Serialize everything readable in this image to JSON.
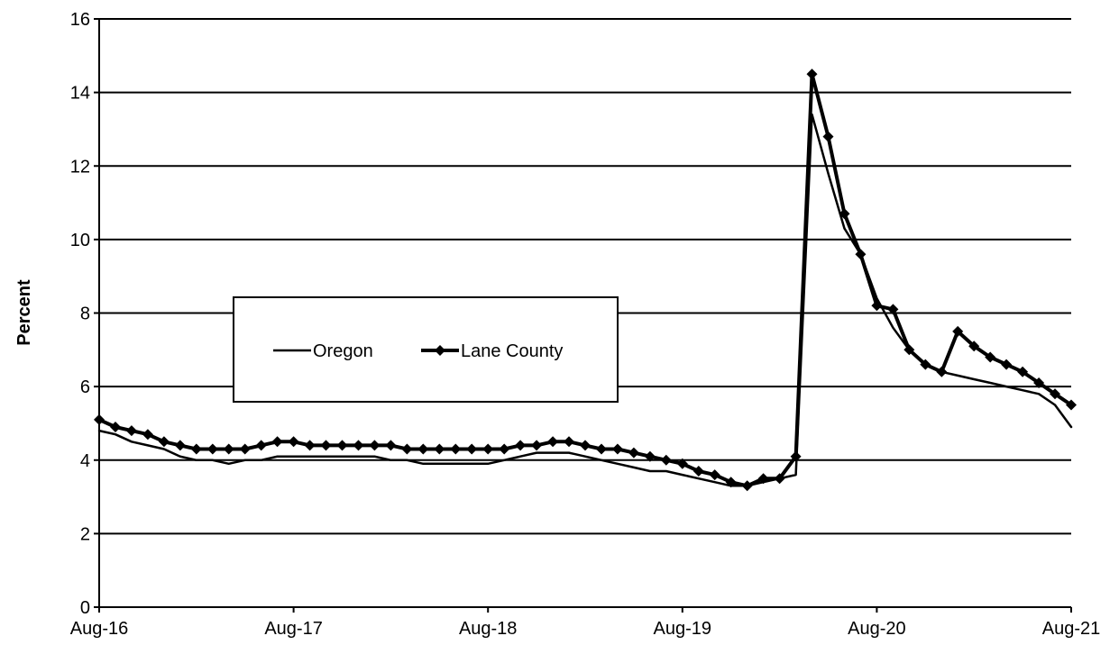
{
  "chart_data": {
    "type": "line",
    "ylabel": "Percent",
    "xlabel": "",
    "title": "",
    "ylim": [
      0,
      16
    ],
    "yticks": [
      "0",
      "2",
      "4",
      "6",
      "8",
      "10",
      "12",
      "14",
      "16"
    ],
    "xlim": [
      "2016-08",
      "2021-08"
    ],
    "xticks": [
      "Aug-16",
      "Aug-17",
      "Aug-18",
      "Aug-19",
      "Aug-20",
      "Aug-21"
    ],
    "grid": "horizontal",
    "legend_placement": "center-left",
    "series": [
      {
        "name": "Oregon",
        "marker": "none",
        "x": [
          "2016-08",
          "2016-09",
          "2016-10",
          "2016-11",
          "2016-12",
          "2017-01",
          "2017-02",
          "2017-03",
          "2017-04",
          "2017-05",
          "2017-06",
          "2017-07",
          "2017-08",
          "2017-09",
          "2017-10",
          "2017-11",
          "2017-12",
          "2018-01",
          "2018-02",
          "2018-03",
          "2018-04",
          "2018-05",
          "2018-06",
          "2018-07",
          "2018-08",
          "2018-09",
          "2018-10",
          "2018-11",
          "2018-12",
          "2019-01",
          "2019-02",
          "2019-03",
          "2019-04",
          "2019-05",
          "2019-06",
          "2019-07",
          "2019-08",
          "2019-09",
          "2019-10",
          "2019-11",
          "2019-12",
          "2020-01",
          "2020-02",
          "2020-03",
          "2020-04",
          "2020-05",
          "2020-06",
          "2020-07",
          "2020-08",
          "2020-09",
          "2020-10",
          "2020-11",
          "2020-12",
          "2021-01",
          "2021-02",
          "2021-03",
          "2021-04",
          "2021-05",
          "2021-06",
          "2021-07",
          "2021-08"
        ],
        "values": [
          4.8,
          4.7,
          4.5,
          4.4,
          4.3,
          4.1,
          4.0,
          4.0,
          3.9,
          4.0,
          4.0,
          4.1,
          4.1,
          4.1,
          4.1,
          4.1,
          4.1,
          4.1,
          4.0,
          4.0,
          3.9,
          3.9,
          3.9,
          3.9,
          3.9,
          4.0,
          4.1,
          4.2,
          4.2,
          4.2,
          4.1,
          4.0,
          3.9,
          3.8,
          3.7,
          3.7,
          3.6,
          3.5,
          3.4,
          3.3,
          3.3,
          3.4,
          3.5,
          3.6,
          13.4,
          11.8,
          10.3,
          9.6,
          8.4,
          7.6,
          7.0,
          6.6,
          6.4,
          6.3,
          6.2,
          6.1,
          6.0,
          5.9,
          5.8,
          5.5,
          4.9
        ]
      },
      {
        "name": "Lane County",
        "marker": "diamond",
        "x": [
          "2016-08",
          "2016-09",
          "2016-10",
          "2016-11",
          "2016-12",
          "2017-01",
          "2017-02",
          "2017-03",
          "2017-04",
          "2017-05",
          "2017-06",
          "2017-07",
          "2017-08",
          "2017-09",
          "2017-10",
          "2017-11",
          "2017-12",
          "2018-01",
          "2018-02",
          "2018-03",
          "2018-04",
          "2018-05",
          "2018-06",
          "2018-07",
          "2018-08",
          "2018-09",
          "2018-10",
          "2018-11",
          "2018-12",
          "2019-01",
          "2019-02",
          "2019-03",
          "2019-04",
          "2019-05",
          "2019-06",
          "2019-07",
          "2019-08",
          "2019-09",
          "2019-10",
          "2019-11",
          "2019-12",
          "2020-01",
          "2020-02",
          "2020-03",
          "2020-04",
          "2020-05",
          "2020-06",
          "2020-07",
          "2020-08",
          "2020-09",
          "2020-10",
          "2020-11",
          "2020-12",
          "2021-01",
          "2021-02",
          "2021-03",
          "2021-04",
          "2021-05",
          "2021-06",
          "2021-07",
          "2021-08"
        ],
        "values": [
          5.1,
          4.9,
          4.8,
          4.7,
          4.5,
          4.4,
          4.3,
          4.3,
          4.3,
          4.3,
          4.4,
          4.5,
          4.5,
          4.4,
          4.4,
          4.4,
          4.4,
          4.4,
          4.4,
          4.3,
          4.3,
          4.3,
          4.3,
          4.3,
          4.3,
          4.3,
          4.4,
          4.4,
          4.5,
          4.5,
          4.4,
          4.3,
          4.3,
          4.2,
          4.1,
          4.0,
          3.9,
          3.7,
          3.6,
          3.4,
          3.3,
          3.5,
          3.5,
          4.1,
          14.5,
          12.8,
          10.7,
          9.6,
          8.2,
          8.1,
          7.0,
          6.6,
          6.4,
          7.5,
          7.1,
          6.8,
          6.6,
          6.4,
          6.1,
          5.8,
          5.5
        ]
      }
    ]
  }
}
